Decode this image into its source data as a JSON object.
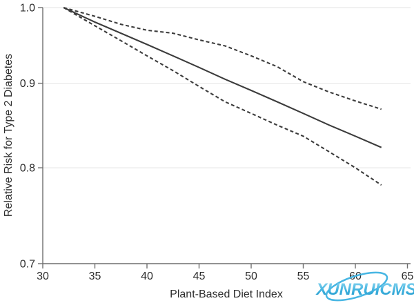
{
  "watermark": {
    "text": "XUNRUICMS",
    "color_top": "#8ed8f2",
    "color_mid": "#36aedd",
    "color_bottom": "#1692c6"
  },
  "chart_data": {
    "type": "line",
    "title": "",
    "xlabel": "Plant-Based Diet Index",
    "ylabel": "Relative Risk for Type 2 Diabetes",
    "xlim": [
      30,
      65.3
    ],
    "ylim": [
      0.7,
      1.0
    ],
    "yscale": "log",
    "x_ticks": [
      30,
      35,
      40,
      45,
      50,
      55,
      60,
      65
    ],
    "y_ticks": [
      1.0,
      0.9,
      0.8,
      0.7
    ],
    "grid": "horizontal-at-y-ticks",
    "legend": "none",
    "colors": {
      "line": "#3c3c3c",
      "grid": "#e3e3e3",
      "axis": "#6e6e6e",
      "text": "#2d2d2d"
    },
    "x": [
      32,
      35,
      37.5,
      40,
      42.5,
      45,
      47.5,
      50,
      52.5,
      55,
      57.5,
      60,
      62.5
    ],
    "series": [
      {
        "name": "Upper 95% CI",
        "style": "dashed",
        "values": [
          1.0,
          0.988,
          0.977,
          0.969,
          0.965,
          0.956,
          0.948,
          0.935,
          0.921,
          0.902,
          0.889,
          0.878,
          0.868
        ]
      },
      {
        "name": "Relative risk (point estimate)",
        "style": "solid",
        "values": [
          1.0,
          0.98,
          0.965,
          0.95,
          0.935,
          0.92,
          0.905,
          0.891,
          0.877,
          0.863,
          0.849,
          0.836,
          0.823
        ]
      },
      {
        "name": "Lower 95% CI",
        "style": "dashed",
        "values": [
          1.0,
          0.975,
          0.955,
          0.935,
          0.916,
          0.896,
          0.877,
          0.863,
          0.849,
          0.836,
          0.818,
          0.8,
          0.781
        ]
      }
    ]
  }
}
